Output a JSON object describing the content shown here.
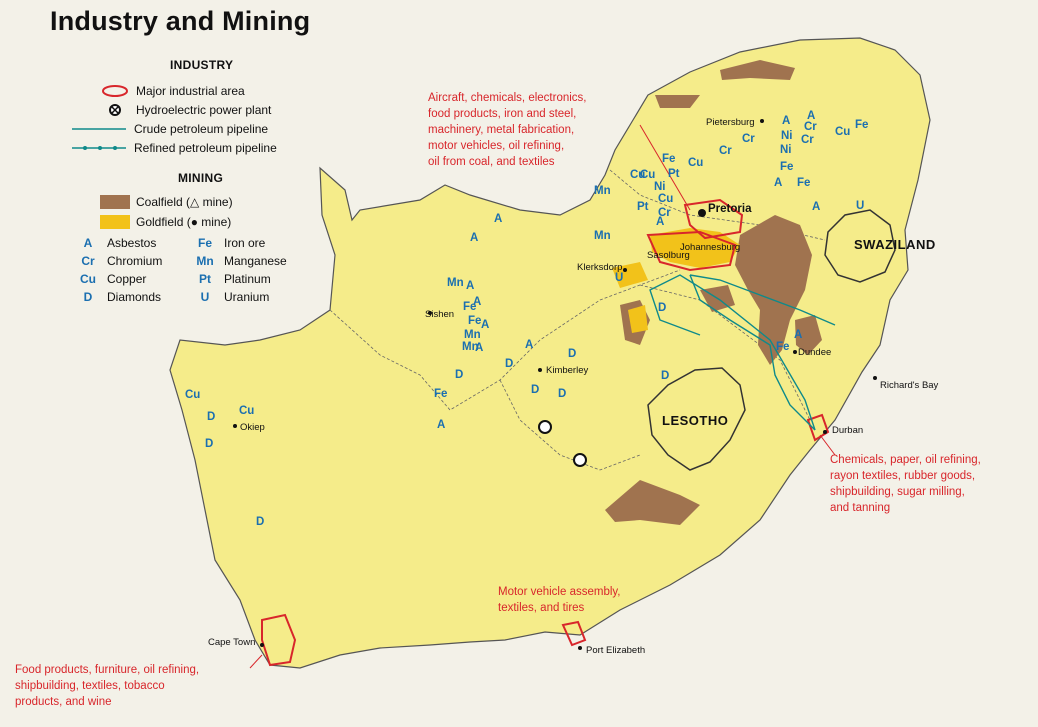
{
  "title": "Industry and Mining",
  "legend": {
    "industry_heading": "INDUSTRY",
    "industry_items": [
      {
        "label": "Major industrial area",
        "icon": "industrial-area-outline-icon"
      },
      {
        "label": "Hydroelectric power plant",
        "icon": "hydro-plant-icon"
      },
      {
        "label": "Crude petroleum pipeline",
        "icon": "crude-pipeline-icon"
      },
      {
        "label": "Refined petroleum pipeline",
        "icon": "refined-pipeline-icon"
      }
    ],
    "mining_heading": "MINING",
    "mining_fields": [
      {
        "label": "Coalfield (△ mine)",
        "icon": "coalfield-icon",
        "color": "#a0734f"
      },
      {
        "label": "Goldfield (● mine)",
        "icon": "goldfield-icon",
        "color": "#f2c21a"
      }
    ],
    "minerals": [
      {
        "code": "A",
        "label": "Asbestos"
      },
      {
        "code": "Cr",
        "label": "Chromium"
      },
      {
        "code": "Cu",
        "label": "Copper"
      },
      {
        "code": "D",
        "label": "Diamonds"
      },
      {
        "code": "Fe",
        "label": "Iron ore"
      },
      {
        "code": "Mn",
        "label": "Manganese"
      },
      {
        "code": "Pt",
        "label": "Platinum"
      },
      {
        "code": "U",
        "label": "Uranium"
      }
    ]
  },
  "countries": {
    "lesotho": "LESOTHO",
    "swaziland": "SWAZILAND"
  },
  "cities": {
    "pretoria": "Pretoria",
    "pietersburg": "Pietersburg",
    "johannesburg": "Johannesburg",
    "klerksdorp": "Klerksdorp",
    "sasolburg": "Sasolburg",
    "sishen": "Sishen",
    "kimberley": "Kimberley",
    "okiep": "Okiep",
    "dundee": "Dundee",
    "richards_bay": "Richard's Bay",
    "durban": "Durban",
    "cape_town": "Cape Town",
    "port_elizabeth": "Port Elizabeth"
  },
  "notes": {
    "pretoria": "Aircraft, chemicals, electronics,\nfood products, iron and steel,\nmachinery, metal fabrication,\nmotor vehicles, oil refining,\noil from coal, and textiles",
    "durban": "Chemicals, paper, oil refining,\nrayon textiles, rubber goods,\nshipbuilding, sugar milling,\nand tanning",
    "port_elizabeth": "Motor vehicle assembly,\ntextiles, and tires",
    "cape_town": "Food products, furniture, oil refining,\nshipbuilding, textiles, tobacco\nproducts, and wine"
  },
  "colors": {
    "land": "#f5ec8a",
    "sea": "#f3f1e8",
    "coal": "#a0734f",
    "gold": "#f2c21a",
    "industrial": "#d8262b",
    "mineral": "#1b6fb0",
    "pipeline": "#0f8a8a",
    "note": "#d8262b"
  },
  "mineral_labels": [
    "Cu",
    "Fe",
    "A",
    "A",
    "Ni",
    "Cr",
    "Cr",
    "Cr",
    "Cr",
    "Ni",
    "Fe",
    "Cu",
    "Pt",
    "Cu",
    "Mn",
    "Cu",
    "Ni",
    "Pt",
    "Cu",
    "Cr",
    "Mn",
    "A",
    "A",
    "A",
    "A",
    "U",
    "U",
    "D",
    "Mn",
    "A",
    "Fe",
    "A",
    "Mn",
    "A",
    "Fe",
    "Mn",
    "A",
    "A",
    "D",
    "D",
    "D",
    "D",
    "D",
    "Fe",
    "A",
    "Cu",
    "D",
    "Cu",
    "D",
    "D",
    "D",
    "Fe",
    "A",
    "Fe",
    "Fe",
    "A"
  ]
}
